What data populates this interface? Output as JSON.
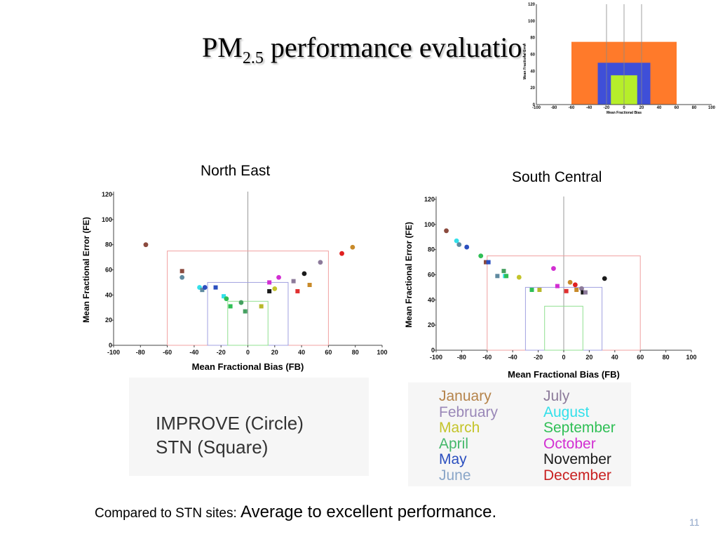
{
  "slide": {
    "title_main": "PM",
    "title_sub": "2.5",
    "title_rest": " performance evaluation",
    "footer_lead": "Compared to STN sites: ",
    "footer_main": "Average to excellent performance.",
    "page_number": "11"
  },
  "legend": {
    "improve": "IMPROVE (Circle)",
    "stn": "STN (Square)"
  },
  "month_colors": {
    "January": "#b5834a",
    "February": "#9a88b8",
    "March": "#c4c42a",
    "April": "#45b86a",
    "May": "#2b4fbf",
    "June": "#8aa6c8",
    "July": "#8c7a9a",
    "August": "#33e0ea",
    "September": "#2fbf55",
    "October": "#d22fd2",
    "November": "#1a1a1a",
    "December": "#c82020"
  },
  "month_legend": {
    "left": [
      "January",
      "February",
      "March",
      "April",
      "May",
      "June"
    ],
    "right": [
      "July",
      "August",
      "September",
      "October",
      "November",
      "December"
    ]
  },
  "chart_data": [
    {
      "id": "inset",
      "type": "area",
      "xlabel": "Mean Fractional Bias",
      "ylabel": "Mean Fractional Error",
      "xlim": [
        -100,
        100
      ],
      "ylim": [
        0,
        120
      ],
      "xticks": [
        -100,
        -80,
        -60,
        -40,
        -20,
        0,
        20,
        40,
        60,
        80,
        100
      ],
      "yticks": [
        0,
        20,
        40,
        60,
        80,
        100,
        120
      ],
      "zones": [
        {
          "fb": [
            -60,
            60
          ],
          "fe": [
            0,
            75
          ],
          "color": "#ff7a2a"
        },
        {
          "fb": [
            -30,
            30
          ],
          "fe": [
            0,
            50
          ],
          "color": "#3f4fd8"
        },
        {
          "fb": [
            -15,
            15
          ],
          "fe": [
            0,
            35
          ],
          "color": "#b6ee2a"
        }
      ],
      "vlines": [
        -20,
        0,
        20
      ]
    },
    {
      "id": "north-east",
      "type": "scatter",
      "title": "North East",
      "xlabel": "Mean Fractional Bias (FB)",
      "ylabel": "Mean Fractional Error (FE)",
      "xlim": [
        -100,
        100
      ],
      "ylim": [
        0,
        120
      ],
      "xticks": [
        -100,
        -80,
        -60,
        -40,
        -20,
        0,
        20,
        40,
        60,
        80,
        100
      ],
      "yticks": [
        0,
        20,
        40,
        60,
        80,
        100,
        120
      ],
      "boxes": [
        {
          "fb": [
            -60,
            60
          ],
          "fe": [
            0,
            75
          ],
          "color": "#f0a0a0"
        },
        {
          "fb": [
            -30,
            30
          ],
          "fe": [
            0,
            50
          ],
          "color": "#a0a0e0"
        },
        {
          "fb": [
            -15,
            15
          ],
          "fe": [
            0,
            35
          ],
          "color": "#90e090"
        }
      ],
      "points": [
        {
          "fb": -76,
          "fe": 80,
          "month": "January",
          "network": "IMPROVE",
          "color": "#8b4a3e"
        },
        {
          "fb": -49,
          "fe": 59,
          "month": "January",
          "network": "STN",
          "color": "#8b4a3e"
        },
        {
          "fb": -49,
          "fe": 54,
          "month": "June",
          "network": "IMPROVE",
          "color": "#5f8aa0"
        },
        {
          "fb": -36,
          "fe": 46,
          "month": "August",
          "network": "IMPROVE",
          "color": "#33e0ea"
        },
        {
          "fb": -34,
          "fe": 44,
          "month": "June",
          "network": "STN",
          "color": "#5f8aa0"
        },
        {
          "fb": -32,
          "fe": 46,
          "month": "May",
          "network": "IMPROVE",
          "color": "#2b4fbf"
        },
        {
          "fb": -24,
          "fe": 46,
          "month": "May",
          "network": "STN",
          "color": "#2b4fbf"
        },
        {
          "fb": -18,
          "fe": 39,
          "month": "August",
          "network": "STN",
          "color": "#33e0ea"
        },
        {
          "fb": -16,
          "fe": 37,
          "month": "September",
          "network": "IMPROVE",
          "color": "#2fbf55"
        },
        {
          "fb": -13,
          "fe": 31,
          "month": "September",
          "network": "STN",
          "color": "#2fbf55"
        },
        {
          "fb": -5,
          "fe": 34,
          "month": "April",
          "network": "IMPROVE",
          "color": "#45a060"
        },
        {
          "fb": -2,
          "fe": 27,
          "month": "April",
          "network": "STN",
          "color": "#45a060"
        },
        {
          "fb": 10,
          "fe": 31,
          "month": "March",
          "network": "STN",
          "color": "#b8b82a"
        },
        {
          "fb": 16,
          "fe": 50,
          "month": "October",
          "network": "STN",
          "color": "#d22fd2"
        },
        {
          "fb": 16,
          "fe": 43,
          "month": "November",
          "network": "STN",
          "color": "#1a1a1a"
        },
        {
          "fb": 20,
          "fe": 45,
          "month": "March",
          "network": "IMPROVE",
          "color": "#c4c42a"
        },
        {
          "fb": 23,
          "fe": 54,
          "month": "October",
          "network": "IMPROVE",
          "color": "#d22fd2"
        },
        {
          "fb": 34,
          "fe": 51,
          "month": "July",
          "network": "STN",
          "color": "#8c7a9a"
        },
        {
          "fb": 37,
          "fe": 43,
          "month": "December",
          "network": "STN",
          "color": "#e03030"
        },
        {
          "fb": 42,
          "fe": 57,
          "month": "November",
          "network": "IMPROVE",
          "color": "#1a1a1a"
        },
        {
          "fb": 46,
          "fe": 48,
          "month": "January",
          "network": "STN",
          "color": "#c88a2a"
        },
        {
          "fb": 54,
          "fe": 66,
          "month": "July",
          "network": "IMPROVE",
          "color": "#8c7a9a"
        },
        {
          "fb": 70,
          "fe": 73,
          "month": "December",
          "network": "IMPROVE",
          "color": "#e02020"
        },
        {
          "fb": 78,
          "fe": 78,
          "month": "January",
          "network": "IMPROVE",
          "color": "#c88a2a"
        }
      ]
    },
    {
      "id": "south-central",
      "type": "scatter",
      "title": "South Central",
      "xlabel": "Mean Fractional Bias (FB)",
      "ylabel": "Mean Fractional Error (FE)",
      "xlim": [
        -100,
        100
      ],
      "ylim": [
        0,
        120
      ],
      "xticks": [
        -100,
        -80,
        -60,
        -40,
        -20,
        0,
        20,
        40,
        60,
        80,
        100
      ],
      "yticks": [
        0,
        20,
        40,
        60,
        80,
        100,
        120
      ],
      "boxes": [
        {
          "fb": [
            -60,
            60
          ],
          "fe": [
            0,
            75
          ],
          "color": "#f0a0a0"
        },
        {
          "fb": [
            -30,
            30
          ],
          "fe": [
            0,
            50
          ],
          "color": "#a0a0e0"
        },
        {
          "fb": [
            -15,
            15
          ],
          "fe": [
            0,
            35
          ],
          "color": "#90e090"
        }
      ],
      "points": [
        {
          "fb": -92,
          "fe": 95,
          "month": "January",
          "network": "IMPROVE",
          "color": "#8b4a3e"
        },
        {
          "fb": -84,
          "fe": 87,
          "month": "August",
          "network": "IMPROVE",
          "color": "#33e0ea"
        },
        {
          "fb": -82,
          "fe": 84,
          "month": "June",
          "network": "IMPROVE",
          "color": "#5f8aa0"
        },
        {
          "fb": -76,
          "fe": 82,
          "month": "May",
          "network": "IMPROVE",
          "color": "#2b4fbf"
        },
        {
          "fb": -65,
          "fe": 75,
          "month": "September",
          "network": "IMPROVE",
          "color": "#2fbf55"
        },
        {
          "fb": -61,
          "fe": 70,
          "month": "January",
          "network": "STN",
          "color": "#8b4a3e"
        },
        {
          "fb": -59,
          "fe": 70,
          "month": "May",
          "network": "STN",
          "color": "#2b4fbf"
        },
        {
          "fb": -52,
          "fe": 59,
          "month": "June",
          "network": "STN",
          "color": "#5f8aa0"
        },
        {
          "fb": -47,
          "fe": 63,
          "month": "April",
          "network": "STN",
          "color": "#45a060"
        },
        {
          "fb": -46,
          "fe": 59,
          "month": "August",
          "network": "STN",
          "color": "#33e0ea"
        },
        {
          "fb": -45,
          "fe": 59,
          "month": "September",
          "network": "STN",
          "color": "#2fbf55"
        },
        {
          "fb": -35,
          "fe": 58,
          "month": "March",
          "network": "IMPROVE",
          "color": "#c4c42a"
        },
        {
          "fb": -25,
          "fe": 48,
          "month": "September",
          "network": "STN",
          "color": "#2fbf55"
        },
        {
          "fb": -19,
          "fe": 48,
          "month": "March",
          "network": "STN",
          "color": "#b8b82a"
        },
        {
          "fb": -8,
          "fe": 65,
          "month": "October",
          "network": "IMPROVE",
          "color": "#d22fd2"
        },
        {
          "fb": -5,
          "fe": 51,
          "month": "October",
          "network": "STN",
          "color": "#d22fd2"
        },
        {
          "fb": 2,
          "fe": 47,
          "month": "December",
          "network": "STN",
          "color": "#e03030"
        },
        {
          "fb": 5,
          "fe": 54,
          "month": "January",
          "network": "IMPROVE",
          "color": "#c88a2a"
        },
        {
          "fb": 9,
          "fe": 52,
          "month": "December",
          "network": "IMPROVE",
          "color": "#e02020"
        },
        {
          "fb": 10,
          "fe": 48,
          "month": "January",
          "network": "STN",
          "color": "#c88a2a"
        },
        {
          "fb": 14,
          "fe": 49,
          "month": "July",
          "network": "IMPROVE",
          "color": "#8c7a9a"
        },
        {
          "fb": 15,
          "fe": 46,
          "month": "November",
          "network": "STN",
          "color": "#1a1a1a"
        },
        {
          "fb": 17,
          "fe": 46,
          "month": "July",
          "network": "STN",
          "color": "#8c7a9a"
        },
        {
          "fb": 32,
          "fe": 57,
          "month": "November",
          "network": "IMPROVE",
          "color": "#1a1a1a"
        }
      ]
    }
  ]
}
